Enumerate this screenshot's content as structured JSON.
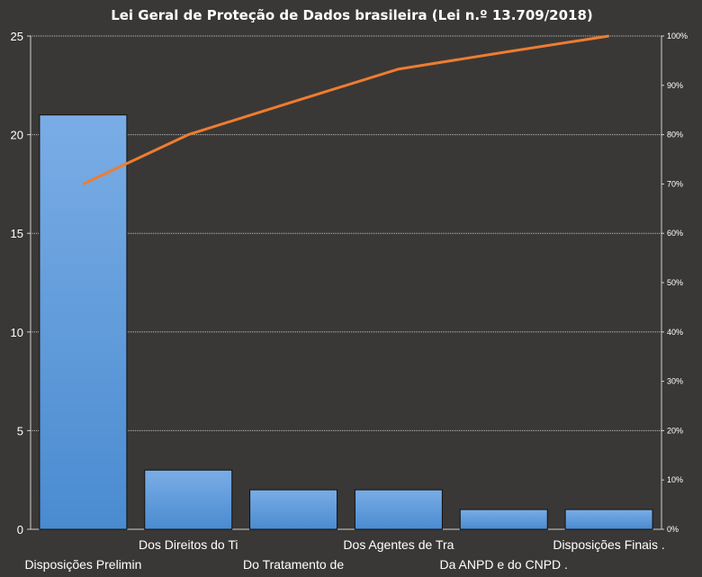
{
  "chart_data": {
    "type": "bar",
    "title": "Lei Geral de Proteção de Dados brasileira (Lei n.º 13.709/2018)",
    "categories": [
      "Disposições Prelimin",
      "Dos Direitos do Ti",
      "Do Tratamento de",
      "Dos Agentes de Tra",
      "Da ANPD e do CNPD .",
      "Disposições Finais ."
    ],
    "series": [
      {
        "values": [
          21,
          3,
          2,
          2,
          1,
          1
        ]
      },
      {
        "type": "line",
        "axis": "secondary",
        "values": [
          70,
          80,
          86.7,
          93.3,
          96.7,
          100
        ]
      }
    ],
    "ylim": [
      0,
      25
    ],
    "yticks": [
      "0",
      "5",
      "10",
      "15",
      "20",
      "25"
    ],
    "y2lim": [
      0,
      100
    ],
    "y2ticks": [
      "0%",
      "10%",
      "20%",
      "30%",
      "40%",
      "50%",
      "60%",
      "70%",
      "80%",
      "90%",
      "100%"
    ],
    "grid": true,
    "legend": "none",
    "colors": {
      "background": "#3a3836",
      "bar_top": "#7aade6",
      "bar_bottom": "#4a8bd0",
      "line": "#ed7d31",
      "grid": "#bfbfbf",
      "text": "#ffffff"
    }
  }
}
